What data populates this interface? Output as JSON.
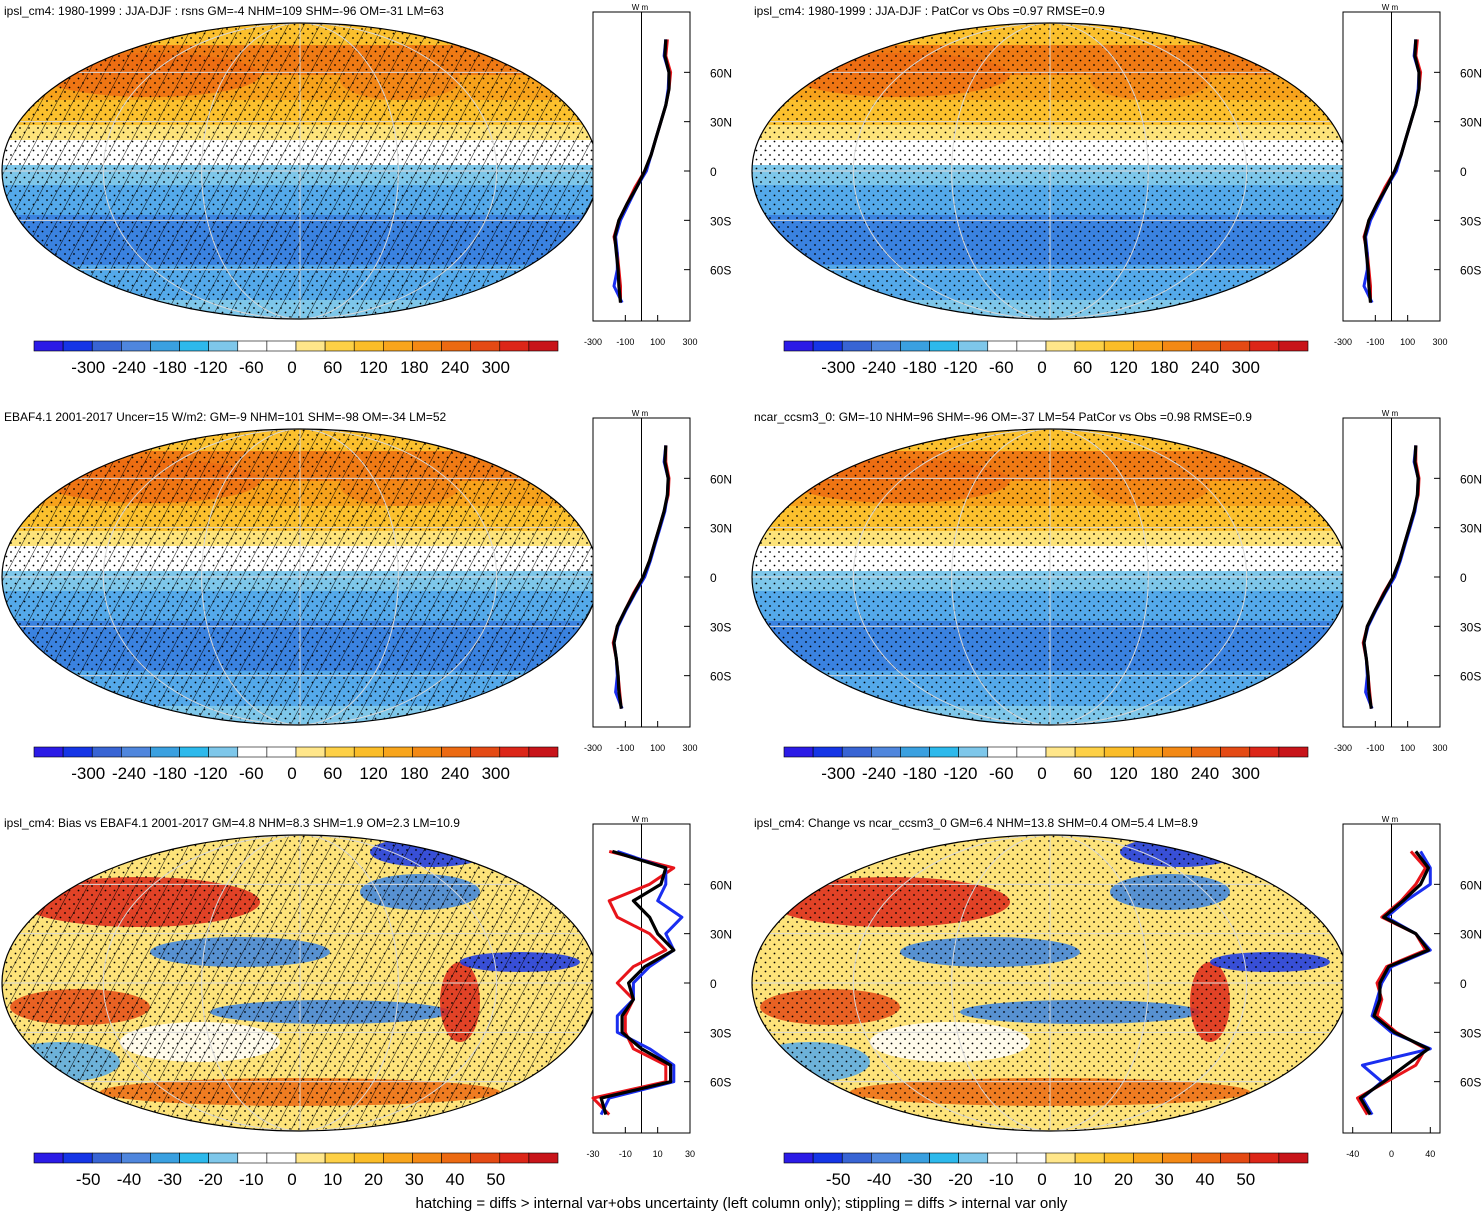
{
  "colors": {
    "palette_13": [
      "#2b1be6",
      "#1535e6",
      "#3864d4",
      "#4f86dd",
      "#3aa0e0",
      "#2db9ec",
      "#7ec7ea",
      "#ffffff",
      "#ffffff",
      "#ffe68a",
      "#fdd046",
      "#fbbd28",
      "#f8a51c",
      "#f38914",
      "#ec6a12",
      "#e44a14",
      "#dc2618",
      "#c8141a"
    ],
    "profile_red": "#e8141a",
    "profile_blue": "#1a2ef0",
    "profile_black": "#000000",
    "grid": "#d9d9d9"
  },
  "footnote": "hatching = diffs > internal var+obs uncertainty (left column only); stippling = diffs > internal var only",
  "chart_data": [
    {
      "type": "heatmap",
      "title": "ipsl_cm4: 1980-1999 : JJA-DJF : rsns GM=-4 NHM=109 SHM=-96 OM=-31 LM=63",
      "colorbar_ticks": [
        "-300",
        "-240",
        "-180",
        "-120",
        "-60",
        "0",
        "60",
        "120",
        "180",
        "240",
        "300"
      ],
      "lat_ticks": [
        "60N",
        "30N",
        "0",
        "30S",
        "60S"
      ],
      "profile_ylabel": "W m-2",
      "profile_xticks": [
        "-300",
        "-100",
        "100",
        "300"
      ],
      "profile_xlim": [
        -300,
        300
      ],
      "profile_lat": [
        80,
        70,
        60,
        50,
        40,
        30,
        20,
        10,
        0,
        -10,
        -20,
        -30,
        -40,
        -50,
        -60,
        -70,
        -80
      ],
      "series": [
        {
          "values": [
            160,
            150,
            180,
            170,
            150,
            120,
            90,
            60,
            20,
            -40,
            -90,
            -140,
            -170,
            -150,
            -140,
            -130,
            -130
          ]
        },
        {
          "values": [
            150,
            140,
            170,
            165,
            150,
            120,
            90,
            60,
            30,
            -30,
            -80,
            -130,
            -160,
            -150,
            -150,
            -170,
            -120
          ]
        },
        {
          "values": [
            150,
            145,
            170,
            170,
            150,
            120,
            90,
            60,
            20,
            -30,
            -90,
            -140,
            -165,
            -155,
            -145,
            -140,
            -130
          ]
        }
      ],
      "hatching": true
    },
    {
      "type": "heatmap",
      "title": "ipsl_cm4: 1980-1999 : JJA-DJF : PatCor vs Obs =0.97 RMSE=0.9",
      "colorbar_ticks": [
        "-300",
        "-240",
        "-180",
        "-120",
        "-60",
        "0",
        "60",
        "120",
        "180",
        "240",
        "300"
      ],
      "lat_ticks": [
        "60N",
        "30N",
        "0",
        "30S",
        "60S"
      ],
      "profile_ylabel": "W m-2",
      "profile_xticks": [
        "-300",
        "-100",
        "100",
        "300"
      ],
      "profile_xlim": [
        -300,
        300
      ],
      "profile_lat": [
        80,
        70,
        60,
        50,
        40,
        30,
        20,
        10,
        0,
        -10,
        -20,
        -30,
        -40,
        -50,
        -60,
        -70,
        -80
      ],
      "series": [
        {
          "values": [
            160,
            150,
            180,
            170,
            150,
            120,
            90,
            60,
            20,
            -40,
            -90,
            -140,
            -170,
            -150,
            -140,
            -130,
            -130
          ]
        },
        {
          "values": [
            150,
            140,
            170,
            165,
            150,
            120,
            90,
            60,
            30,
            -30,
            -80,
            -130,
            -160,
            -150,
            -150,
            -170,
            -120
          ]
        },
        {
          "values": [
            150,
            145,
            170,
            170,
            150,
            120,
            90,
            60,
            20,
            -30,
            -90,
            -140,
            -165,
            -155,
            -145,
            -140,
            -130
          ]
        }
      ],
      "hatching": false
    },
    {
      "type": "heatmap",
      "title": "EBAF4.1 2001-2017 Uncer=15 W/m2: GM=-9 NHM=101 SHM=-98 OM=-34 LM=52",
      "colorbar_ticks": [
        "-300",
        "-240",
        "-180",
        "-120",
        "-60",
        "0",
        "60",
        "120",
        "180",
        "240",
        "300"
      ],
      "lat_ticks": [
        "60N",
        "30N",
        "0",
        "30S",
        "60S"
      ],
      "profile_ylabel": "W m-2",
      "profile_xticks": [
        "-300",
        "-100",
        "100",
        "300"
      ],
      "profile_xlim": [
        -300,
        300
      ],
      "profile_lat": [
        80,
        70,
        60,
        50,
        40,
        30,
        20,
        10,
        0,
        -10,
        -20,
        -30,
        -40,
        -50,
        -60,
        -70,
        -80
      ],
      "series": [
        {
          "values": [
            150,
            150,
            170,
            165,
            140,
            110,
            80,
            50,
            10,
            -50,
            -100,
            -150,
            -175,
            -155,
            -145,
            -135,
            -125
          ]
        },
        {
          "values": [
            150,
            140,
            165,
            160,
            145,
            115,
            85,
            55,
            20,
            -40,
            -95,
            -145,
            -170,
            -155,
            -150,
            -160,
            -120
          ]
        },
        {
          "values": [
            150,
            145,
            165,
            160,
            140,
            110,
            80,
            50,
            10,
            -45,
            -100,
            -150,
            -170,
            -155,
            -145,
            -140,
            -125
          ]
        }
      ],
      "hatching": true
    },
    {
      "type": "heatmap",
      "title": "ncar_ccsm3_0: GM=-10 NHM=96 SHM=-96 OM=-37 LM=54 PatCor vs Obs =0.98 RMSE=0.9",
      "colorbar_ticks": [
        "-300",
        "-240",
        "-180",
        "-120",
        "-60",
        "0",
        "60",
        "120",
        "180",
        "240",
        "300"
      ],
      "lat_ticks": [
        "60N",
        "30N",
        "0",
        "30S",
        "60S"
      ],
      "profile_ylabel": "W m-2",
      "profile_xticks": [
        "-300",
        "-100",
        "100",
        "300"
      ],
      "profile_xlim": [
        -300,
        300
      ],
      "profile_lat": [
        80,
        70,
        60,
        50,
        40,
        30,
        20,
        10,
        0,
        -10,
        -20,
        -30,
        -40,
        -50,
        -60,
        -70,
        -80
      ],
      "series": [
        {
          "values": [
            150,
            150,
            170,
            165,
            140,
            110,
            80,
            50,
            10,
            -50,
            -100,
            -150,
            -175,
            -155,
            -145,
            -135,
            -125
          ]
        },
        {
          "values": [
            150,
            140,
            165,
            160,
            145,
            115,
            85,
            55,
            20,
            -40,
            -95,
            -145,
            -170,
            -155,
            -150,
            -160,
            -120
          ]
        },
        {
          "values": [
            150,
            145,
            165,
            160,
            140,
            110,
            80,
            50,
            10,
            -45,
            -100,
            -150,
            -170,
            -155,
            -145,
            -140,
            -125
          ]
        }
      ],
      "hatching": false
    },
    {
      "type": "heatmap",
      "title": "ipsl_cm4: Bias vs EBAF4.1 2001-2017 GM=4.8 NHM=8.3 SHM=1.9 OM=2.3 LM=10.9",
      "colorbar_ticks": [
        "-50",
        "-40",
        "-30",
        "-20",
        "-10",
        "0",
        "10",
        "20",
        "30",
        "40",
        "50"
      ],
      "lat_ticks": [
        "60N",
        "30N",
        "0",
        "30S",
        "60S"
      ],
      "profile_ylabel": "W m-2",
      "profile_xticks": [
        "-30",
        "-10",
        "10",
        "30"
      ],
      "profile_xlim": [
        -30,
        30
      ],
      "profile_lat": [
        80,
        70,
        60,
        50,
        40,
        30,
        20,
        10,
        0,
        -10,
        -20,
        -30,
        -40,
        -50,
        -60,
        -70,
        -80
      ],
      "series": [
        {
          "values": [
            -20,
            20,
            5,
            -20,
            -15,
            5,
            15,
            -5,
            -15,
            -5,
            -10,
            -10,
            -5,
            15,
            15,
            -30,
            -20
          ]
        },
        {
          "values": [
            -15,
            15,
            15,
            10,
            25,
            15,
            20,
            5,
            -5,
            -5,
            -15,
            -15,
            5,
            20,
            20,
            -20,
            -25
          ]
        },
        {
          "values": [
            -18,
            15,
            12,
            -5,
            5,
            10,
            20,
            2,
            -8,
            -5,
            -12,
            -12,
            0,
            18,
            18,
            -25,
            -22
          ]
        }
      ],
      "hatching": true
    },
    {
      "type": "heatmap",
      "title": "ipsl_cm4: Change vs ncar_ccsm3_0 GM=6.4 NHM=13.8 SHM=0.4 OM=5.4 LM=8.9",
      "colorbar_ticks": [
        "-50",
        "-40",
        "-30",
        "-20",
        "-10",
        "0",
        "10",
        "20",
        "30",
        "40",
        "50"
      ],
      "lat_ticks": [
        "60N",
        "30N",
        "0",
        "30S",
        "60S"
      ],
      "profile_ylabel": "W m-2",
      "profile_xticks": [
        "-40",
        "0",
        "40"
      ],
      "profile_xlim": [
        -50,
        50
      ],
      "profile_lat": [
        80,
        70,
        60,
        50,
        40,
        30,
        20,
        10,
        0,
        -10,
        -20,
        -30,
        -40,
        -50,
        -60,
        -70,
        -80
      ],
      "series": [
        {
          "values": [
            20,
            35,
            25,
            10,
            -10,
            25,
            35,
            -5,
            -15,
            -10,
            -15,
            5,
            35,
            25,
            -5,
            -35,
            -25
          ]
        },
        {
          "values": [
            30,
            40,
            40,
            15,
            -5,
            25,
            40,
            0,
            -10,
            -15,
            -20,
            0,
            40,
            -30,
            -10,
            -30,
            -20
          ]
        },
        {
          "values": [
            25,
            38,
            30,
            12,
            -8,
            25,
            38,
            -3,
            -12,
            -12,
            -18,
            3,
            38,
            15,
            -8,
            -32,
            -22
          ]
        }
      ],
      "hatching": false
    }
  ]
}
